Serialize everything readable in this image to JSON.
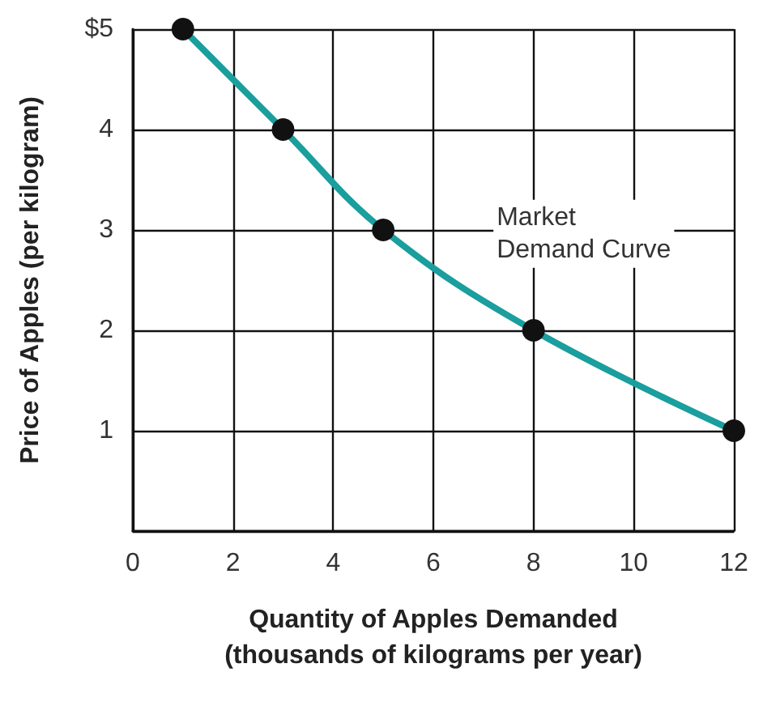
{
  "chart_data": {
    "type": "line",
    "xlabel": "Quantity of Apples Demanded\n(thousands of kilograms per year)",
    "ylabel": "Price of Apples (per kilogram)",
    "x": [
      1,
      3,
      5,
      8,
      12
    ],
    "series": [
      {
        "color": "#1a9e9e",
        "values": [
          5,
          4,
          3,
          2,
          1
        ]
      }
    ],
    "xlim": [
      0,
      12
    ],
    "xticks": [
      0,
      2,
      4,
      6,
      8,
      10,
      12
    ],
    "ylim": [
      0,
      5
    ],
    "yticks": [
      {
        "value": 0,
        "label": null
      },
      1,
      2,
      3,
      4,
      {
        "value": 5,
        "label": "$5"
      }
    ],
    "grid": true,
    "marker": "circle",
    "line_style": "solid",
    "annotations": [
      "Market\nDemand Curve"
    ]
  }
}
